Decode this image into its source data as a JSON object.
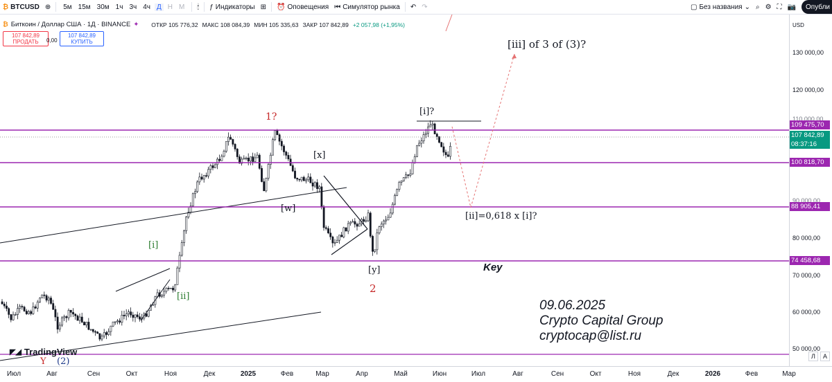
{
  "toolbar": {
    "symbol": "BTCUSD",
    "timeframes": [
      "5м",
      "15м",
      "30м",
      "1ч",
      "3ч",
      "4ч",
      "Д",
      "Н",
      "М"
    ],
    "active_timeframe": "Д",
    "indicators_label": "Индикаторы",
    "alerts_label": "Оповещения",
    "replay_label": "Симулятор рынка",
    "layout_name": "Без названия",
    "publish_label": "Опубли"
  },
  "legend": {
    "title": "Биткоин / Доллар США · 1Д · BINANCE",
    "open": "ОТКР 105 776,32",
    "high": "МАКС 108 084,39",
    "low": "МИН 105 335,63",
    "close": "ЗАКР 107 842,89",
    "change": "+2 057,98 (+1,95%)",
    "sell_price": "107 842,89",
    "sell_label": "ПРОДАТЬ",
    "spread": "0,00",
    "buy_price": "107 842,89",
    "buy_label": "КУПИТЬ"
  },
  "price_scale": {
    "currency": "USD",
    "ticks": [
      "130 000,00",
      "120 000,00",
      "110 000,00",
      "90 000,00",
      "80 000,00",
      "70 000,00",
      "60 000,00",
      "50 000,00"
    ],
    "levels": [
      {
        "label": "109 475,70",
        "color": "#9c27b0"
      },
      {
        "label": "107 842,89",
        "color": "#089981"
      },
      {
        "label": "08:37:16",
        "color": "#089981"
      },
      {
        "label": "100 818,70",
        "color": "#9c27b0"
      },
      {
        "label": "88 905,41",
        "color": "#9c27b0"
      },
      {
        "label": "74 458,68",
        "color": "#9c27b0"
      }
    ]
  },
  "time_axis": [
    "Июл",
    "Авг",
    "Сен",
    "Окт",
    "Ноя",
    "Дек",
    "2025",
    "Фев",
    "Мар",
    "Апр",
    "Май",
    "Июн",
    "Июл",
    "Авг",
    "Сен",
    "Окт",
    "Ноя",
    "Дек",
    "2026",
    "Фев",
    "Мар"
  ],
  "annotations": {
    "wave_1": "1?",
    "wave_x": "[x]",
    "wave_w": "[w]",
    "wave_y": "[y]",
    "wave_2": "2",
    "wave_i_top": "[i]?",
    "wave_i_small": "[i]",
    "wave_ii_small": "[ii]",
    "target": "[iii] of 3 of (3)?",
    "retrace": "[ii]=0,618 x [i]?",
    "key": "Key",
    "bottom_y": "Y",
    "bottom_2": "(2)"
  },
  "signature": {
    "date": "09.06.2025",
    "author": "Crypto Capital Group",
    "email": "cryptocap@list.ru"
  },
  "branding": {
    "logo_text": "TradingView"
  },
  "colors": {
    "level_line": "#9c27b0",
    "up_candle": "#131722",
    "forecast": "#e57373"
  }
}
